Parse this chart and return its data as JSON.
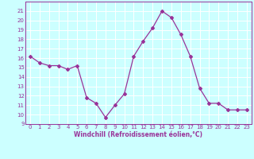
{
  "x": [
    0,
    1,
    2,
    3,
    4,
    5,
    6,
    7,
    8,
    9,
    10,
    11,
    12,
    13,
    14,
    15,
    16,
    17,
    18,
    19,
    20,
    21,
    22,
    23
  ],
  "y": [
    16.2,
    15.5,
    15.2,
    15.2,
    14.8,
    15.2,
    11.8,
    11.2,
    9.7,
    11.0,
    12.2,
    16.2,
    17.8,
    19.2,
    21.0,
    20.3,
    18.5,
    16.2,
    12.8,
    11.2,
    11.2,
    10.5,
    10.5,
    10.5
  ],
  "xlim": [
    -0.5,
    23.5
  ],
  "ylim": [
    9,
    22
  ],
  "yticks": [
    9,
    10,
    11,
    12,
    13,
    14,
    15,
    16,
    17,
    18,
    19,
    20,
    21
  ],
  "xticks": [
    0,
    1,
    2,
    3,
    4,
    5,
    6,
    7,
    8,
    9,
    10,
    11,
    12,
    13,
    14,
    15,
    16,
    17,
    18,
    19,
    20,
    21,
    22,
    23
  ],
  "line_color": "#993399",
  "marker": "D",
  "marker_size": 2.0,
  "bg_color": "#ccffff",
  "grid_color": "#ffffff",
  "xlabel": "Windchill (Refroidissement éolien,°C)",
  "font_color": "#993399",
  "tick_fontsize": 5.0,
  "xlabel_fontsize": 5.5,
  "linewidth": 0.9
}
